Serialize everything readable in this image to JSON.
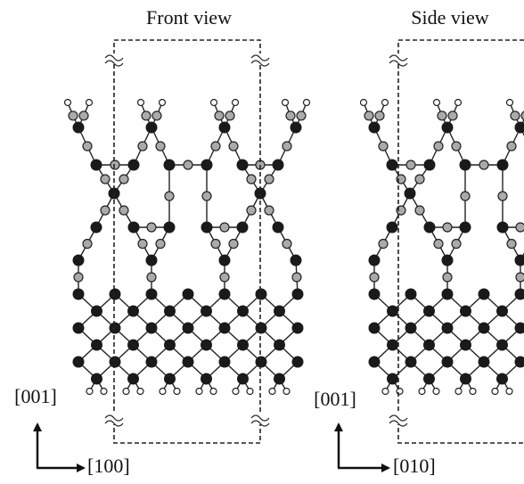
{
  "panels": [
    {
      "title": "Front view",
      "axes": {
        "vertical": "[001]",
        "horizontal": "[100]"
      }
    },
    {
      "title": "Side view",
      "axes": {
        "vertical": "[001]",
        "horizontal": "[010]"
      }
    }
  ]
}
